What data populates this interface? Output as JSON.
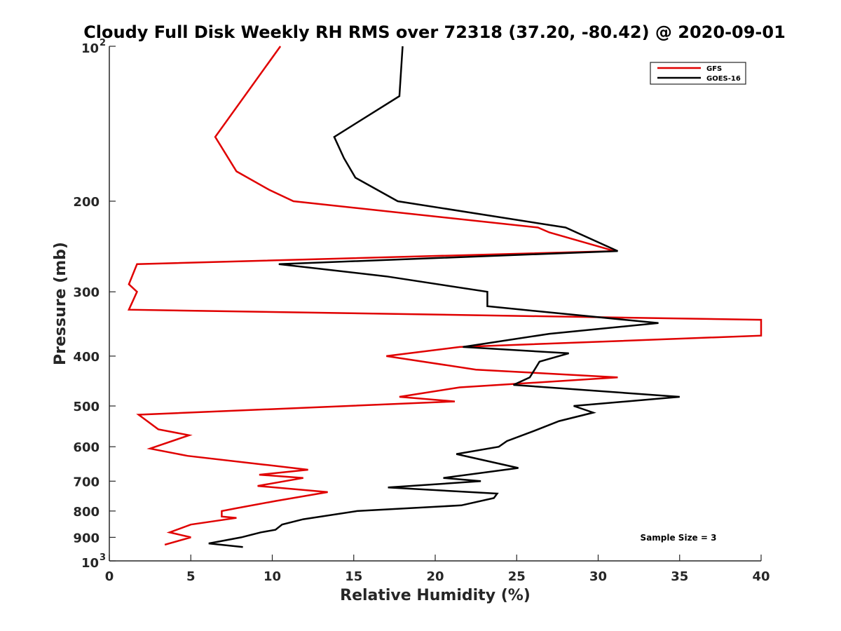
{
  "chart_data": {
    "type": "line",
    "title": "Cloudy Full Disk Weekly RH RMS over 72318 (37.20, -80.42) @ 2020-09-01",
    "xlabel": "Relative Humidity (%)",
    "ylabel": "Pressure (mb)",
    "xlim": [
      0,
      40
    ],
    "ylim": [
      100,
      1000
    ],
    "yscale": "log",
    "y_reversed": true,
    "x_ticks": [
      0,
      5,
      10,
      15,
      20,
      25,
      30,
      35,
      40
    ],
    "x_tick_labels": [
      "0",
      "5",
      "10",
      "15",
      "20",
      "25",
      "30",
      "35",
      "40"
    ],
    "y_ticks": [
      100,
      200,
      300,
      400,
      500,
      600,
      700,
      800,
      900,
      1000
    ],
    "y_tick_labels": [
      {
        "base": "10",
        "exp": "2"
      },
      {
        "base": "200",
        "exp": ""
      },
      {
        "base": "300",
        "exp": ""
      },
      {
        "base": "400",
        "exp": ""
      },
      {
        "base": "500",
        "exp": ""
      },
      {
        "base": "600",
        "exp": ""
      },
      {
        "base": "700",
        "exp": ""
      },
      {
        "base": "800",
        "exp": ""
      },
      {
        "base": "900",
        "exp": ""
      },
      {
        "base": "10",
        "exp": "3"
      }
    ],
    "grid": false,
    "legend_position": "top-right",
    "annotation": "Sample Size = 3",
    "series": [
      {
        "name": "GFS",
        "color": "#e00000",
        "points": [
          [
            10.5,
            100
          ],
          [
            6.5,
            150
          ],
          [
            7.8,
            175
          ],
          [
            9.8,
            190
          ],
          [
            11.3,
            200
          ],
          [
            26.3,
            225
          ],
          [
            27,
            230
          ],
          [
            31,
            250
          ],
          [
            1.7,
            265
          ],
          [
            1.2,
            290
          ],
          [
            1.7,
            300
          ],
          [
            1.2,
            325
          ],
          [
            40,
            340
          ],
          [
            40,
            365
          ],
          [
            21.5,
            384
          ],
          [
            17,
            400
          ],
          [
            22.5,
            425
          ],
          [
            31.2,
            440
          ],
          [
            21.5,
            460
          ],
          [
            17.8,
            480
          ],
          [
            21.2,
            490
          ],
          [
            1.8,
            520
          ],
          [
            3,
            555
          ],
          [
            4.9,
            570
          ],
          [
            2.5,
            605
          ],
          [
            4.8,
            625
          ],
          [
            9.5,
            650
          ],
          [
            12.2,
            665
          ],
          [
            9.2,
            680
          ],
          [
            11.9,
            690
          ],
          [
            9.1,
            715
          ],
          [
            13.4,
            735
          ],
          [
            10.2,
            765
          ],
          [
            7.8,
            790
          ],
          [
            6.9,
            800
          ],
          [
            6.9,
            820
          ],
          [
            7.8,
            825
          ],
          [
            5,
            850
          ],
          [
            3.7,
            880
          ],
          [
            5,
            900
          ],
          [
            3.4,
            930
          ]
        ]
      },
      {
        "name": "GOES-16",
        "color": "#000000",
        "points": [
          [
            18,
            100
          ],
          [
            17.8,
            125
          ],
          [
            13.8,
            150
          ],
          [
            14.4,
            165
          ],
          [
            15.1,
            180
          ],
          [
            17.7,
            200
          ],
          [
            28,
            225
          ],
          [
            31.2,
            250
          ],
          [
            10.4,
            265
          ],
          [
            17,
            280
          ],
          [
            23.2,
            300
          ],
          [
            23.2,
            320
          ],
          [
            33.7,
            345
          ],
          [
            27,
            362
          ],
          [
            21.7,
            384
          ],
          [
            28.2,
            395
          ],
          [
            26.4,
            410
          ],
          [
            26.1,
            425
          ],
          [
            25.8,
            440
          ],
          [
            24.8,
            455
          ],
          [
            35,
            480
          ],
          [
            28.5,
            500
          ],
          [
            29.7,
            515
          ],
          [
            27.6,
            535
          ],
          [
            26,
            560
          ],
          [
            24.4,
            585
          ],
          [
            23.9,
            600
          ],
          [
            21.3,
            620
          ],
          [
            25.1,
            660
          ],
          [
            20.5,
            690
          ],
          [
            22.8,
            700
          ],
          [
            17.1,
            720
          ],
          [
            23.8,
            740
          ],
          [
            23.6,
            755
          ],
          [
            21.6,
            780
          ],
          [
            15.2,
            800
          ],
          [
            11.9,
            830
          ],
          [
            10.6,
            850
          ],
          [
            10.2,
            870
          ],
          [
            9.3,
            880
          ],
          [
            8.1,
            900
          ],
          [
            6.1,
            925
          ],
          [
            8.2,
            940
          ]
        ]
      }
    ]
  },
  "colors": {
    "axis": "#262626",
    "background": "#ffffff"
  }
}
